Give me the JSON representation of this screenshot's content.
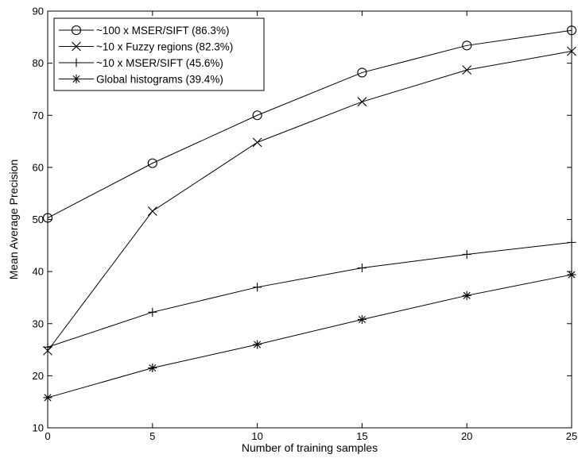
{
  "chart_data": {
    "type": "line",
    "title": "",
    "xlabel": "Number of training samples",
    "ylabel": "Mean Average Precision",
    "xlim": [
      0,
      25
    ],
    "ylim": [
      10,
      90
    ],
    "xticks": [
      0,
      5,
      10,
      15,
      20,
      25
    ],
    "yticks": [
      10,
      20,
      30,
      40,
      50,
      60,
      70,
      80,
      90
    ],
    "grid": false,
    "legend_position": "top-left",
    "x": [
      0,
      5,
      10,
      15,
      20,
      25
    ],
    "series": [
      {
        "name": "~100 x MSER/SIFT (86.3%)",
        "marker": "circle",
        "values": [
          50.3,
          60.8,
          70.0,
          78.2,
          83.4,
          86.3
        ]
      },
      {
        "name": "~10 x Fuzzy regions (82.3%)",
        "marker": "x",
        "values": [
          24.8,
          51.6,
          64.8,
          72.6,
          78.7,
          82.3
        ]
      },
      {
        "name": "~10 x MSER/SIFT (45.6%)",
        "marker": "plus",
        "values": [
          25.5,
          32.2,
          37.0,
          40.7,
          43.3,
          45.6
        ]
      },
      {
        "name": "Global histograms (39.4%)",
        "marker": "star",
        "values": [
          15.8,
          21.5,
          26.0,
          30.8,
          35.4,
          39.4
        ]
      }
    ],
    "colors": {
      "line": "#000000",
      "background": "#ffffff"
    }
  }
}
